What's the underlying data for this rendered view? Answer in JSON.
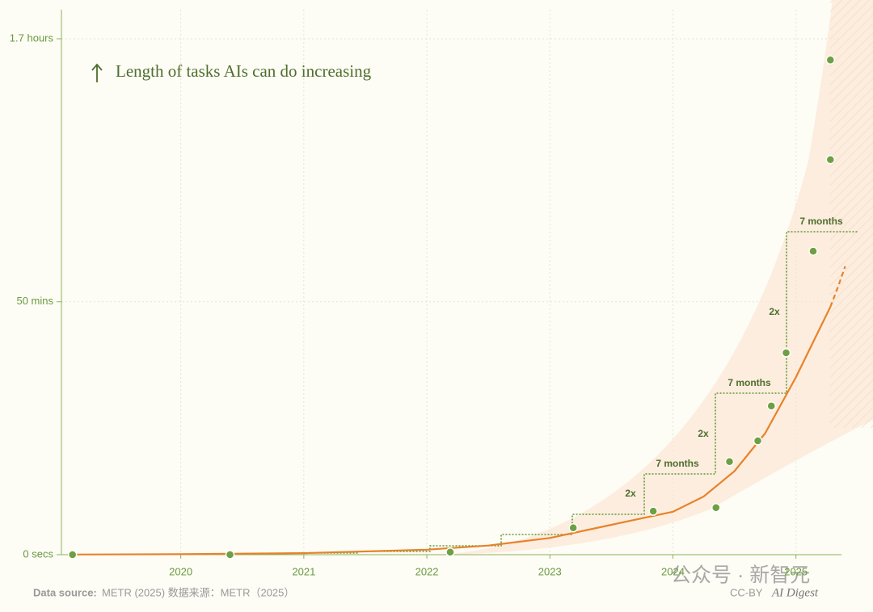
{
  "chart_data": {
    "type": "scatter",
    "title": "Length of tasks AIs can do increasing",
    "x": [
      2019.12,
      2020.4,
      2022.19,
      2023.19,
      2023.84,
      2024.35,
      2024.46,
      2024.69,
      2024.8,
      2024.92,
      2025.14,
      2025.28,
      2025.28
    ],
    "values": [
      0,
      0,
      0.5,
      5.3,
      8.6,
      9.3,
      18.4,
      22.5,
      29.4,
      39.9,
      60,
      78.1,
      97.8
    ],
    "color": "#6e9f45",
    "trend": {
      "color": "#e8822a",
      "x": [
        2019.1,
        2020,
        2021,
        2022,
        2022.5,
        2023,
        2023.5,
        2024,
        2024.25,
        2024.5,
        2024.75,
        2025,
        2025.28
      ],
      "values": [
        0.03,
        0.09,
        0.3,
        0.99,
        1.8,
        3.3,
        5.9,
        8.5,
        11.5,
        16.5,
        24,
        35.1,
        49
      ],
      "projection_x": [
        2025.28,
        2025.34,
        2025.4
      ],
      "projection_values": [
        49,
        52.8,
        57
      ]
    },
    "xlim": [
      2019.03,
      2025.37
    ],
    "xticks": [
      2020,
      2021,
      2022,
      2023,
      2024,
      2025
    ],
    "ylim": [
      0,
      102
    ],
    "yticks": [
      {
        "value": 0,
        "label": "0 secs"
      },
      {
        "value": 50,
        "label": "50 mins"
      },
      {
        "value": 102,
        "label": "1.7 hours"
      }
    ],
    "grid": true,
    "annotations": [
      "2x",
      "7 months",
      "2x",
      "7 months",
      "2x",
      "7 months"
    ],
    "source_label": "Data source:",
    "source": "METR (2025)  数据来源：METR（2025）",
    "license": "CC-BY",
    "brand": "AI Digest",
    "watermark": "公众号 · 新智元"
  }
}
